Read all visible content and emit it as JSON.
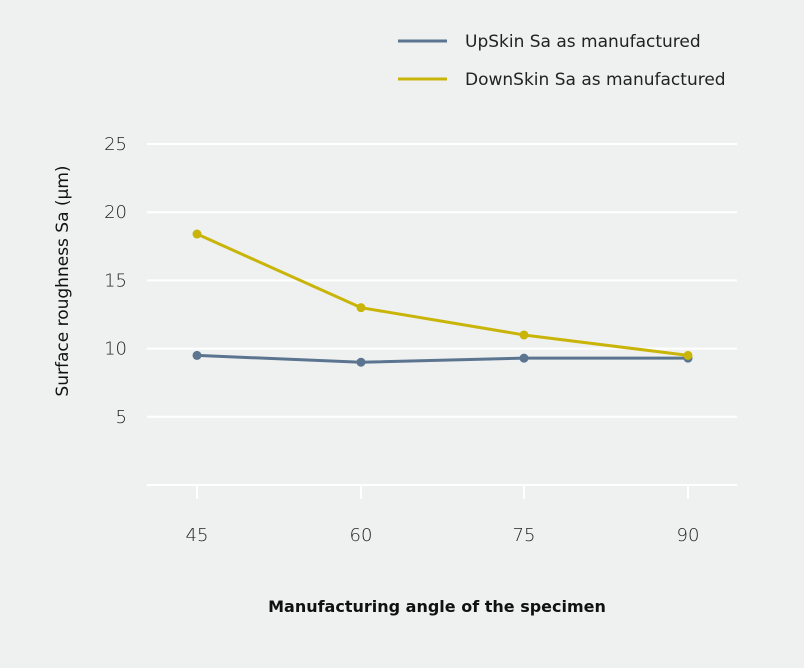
{
  "chart_data": {
    "type": "line",
    "title": "",
    "xlabel": "Manufacturing angle of the specimen",
    "ylabel": "Surface roughness Sa (µm)",
    "categories": [
      "45",
      "60",
      "75",
      "90"
    ],
    "x": [
      45,
      60,
      75,
      90
    ],
    "ylim": [
      0,
      25
    ],
    "yticks": [
      "5",
      "10",
      "15",
      "20",
      "25"
    ],
    "ytick_values": [
      5,
      10,
      15,
      20,
      25
    ],
    "grid": true,
    "legend_position": "top-right",
    "series": [
      {
        "name": "UpSkin Sa as manufactured",
        "color": "#5b7590",
        "values": [
          9.5,
          9.0,
          9.3,
          9.3
        ]
      },
      {
        "name": "DownSkin Sa as manufactured",
        "color": "#c9b50a",
        "values": [
          18.4,
          13.0,
          11.0,
          9.5
        ]
      }
    ]
  }
}
